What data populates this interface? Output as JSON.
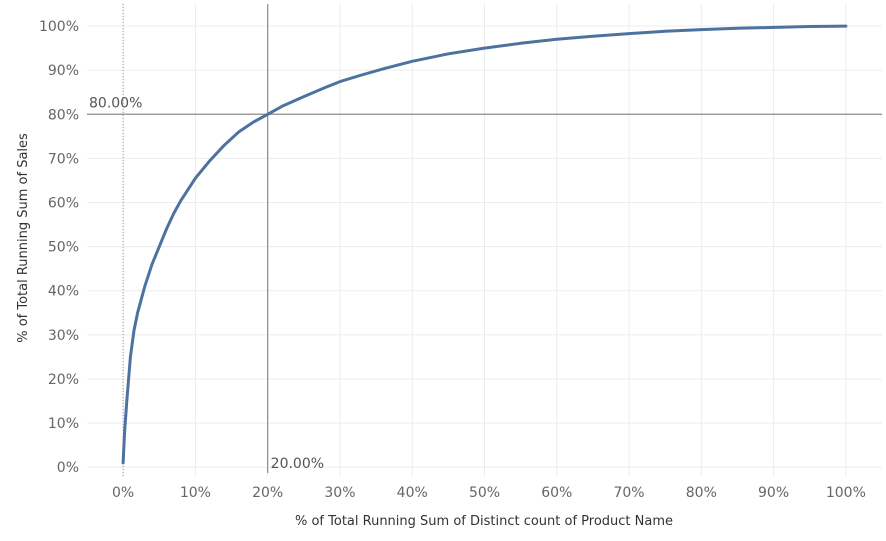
{
  "chart_data": {
    "type": "line",
    "title": "",
    "xlabel": "% of Total Running Sum of Distinct count of Product Name",
    "ylabel": "% of Total Running Sum of Sales",
    "xlim": [
      -0.05,
      1.05
    ],
    "ylim": [
      -0.02,
      1.05
    ],
    "grid": true,
    "x_ticks": [
      {
        "value": 0.0,
        "label": "0%"
      },
      {
        "value": 0.1,
        "label": "10%"
      },
      {
        "value": 0.2,
        "label": "20%"
      },
      {
        "value": 0.3,
        "label": "30%"
      },
      {
        "value": 0.4,
        "label": "40%"
      },
      {
        "value": 0.5,
        "label": "50%"
      },
      {
        "value": 0.6,
        "label": "60%"
      },
      {
        "value": 0.7,
        "label": "70%"
      },
      {
        "value": 0.8,
        "label": "80%"
      },
      {
        "value": 0.9,
        "label": "90%"
      },
      {
        "value": 1.0,
        "label": "100%"
      }
    ],
    "y_ticks": [
      {
        "value": 0.0,
        "label": "0%"
      },
      {
        "value": 0.1,
        "label": "10%"
      },
      {
        "value": 0.2,
        "label": "20%"
      },
      {
        "value": 0.3,
        "label": "30%"
      },
      {
        "value": 0.4,
        "label": "40%"
      },
      {
        "value": 0.5,
        "label": "50%"
      },
      {
        "value": 0.6,
        "label": "60%"
      },
      {
        "value": 0.7,
        "label": "70%"
      },
      {
        "value": 0.8,
        "label": "80%"
      },
      {
        "value": 0.9,
        "label": "90%"
      },
      {
        "value": 1.0,
        "label": "100%"
      }
    ],
    "series": [
      {
        "color": "#4e729f",
        "points": [
          [
            0.0,
            0.01
          ],
          [
            0.002,
            0.08
          ],
          [
            0.005,
            0.15
          ],
          [
            0.01,
            0.25
          ],
          [
            0.015,
            0.31
          ],
          [
            0.02,
            0.35
          ],
          [
            0.03,
            0.41
          ],
          [
            0.04,
            0.46
          ],
          [
            0.05,
            0.5
          ],
          [
            0.06,
            0.54
          ],
          [
            0.07,
            0.575
          ],
          [
            0.08,
            0.605
          ],
          [
            0.09,
            0.63
          ],
          [
            0.1,
            0.655
          ],
          [
            0.12,
            0.695
          ],
          [
            0.14,
            0.73
          ],
          [
            0.16,
            0.76
          ],
          [
            0.18,
            0.782
          ],
          [
            0.2,
            0.8
          ],
          [
            0.22,
            0.818
          ],
          [
            0.25,
            0.84
          ],
          [
            0.28,
            0.861
          ],
          [
            0.3,
            0.874
          ],
          [
            0.33,
            0.889
          ],
          [
            0.36,
            0.903
          ],
          [
            0.4,
            0.92
          ],
          [
            0.45,
            0.937
          ],
          [
            0.5,
            0.95
          ],
          [
            0.55,
            0.961
          ],
          [
            0.6,
            0.97
          ],
          [
            0.65,
            0.977
          ],
          [
            0.7,
            0.983
          ],
          [
            0.75,
            0.988
          ],
          [
            0.8,
            0.992
          ],
          [
            0.85,
            0.995
          ],
          [
            0.9,
            0.997
          ],
          [
            0.95,
            0.999
          ],
          [
            1.0,
            1.0
          ]
        ]
      }
    ],
    "reference_lines": [
      {
        "axis": "y",
        "value": 0.8,
        "label": "80.00%"
      },
      {
        "axis": "x",
        "value": 0.2,
        "label": "20.00%"
      }
    ]
  }
}
